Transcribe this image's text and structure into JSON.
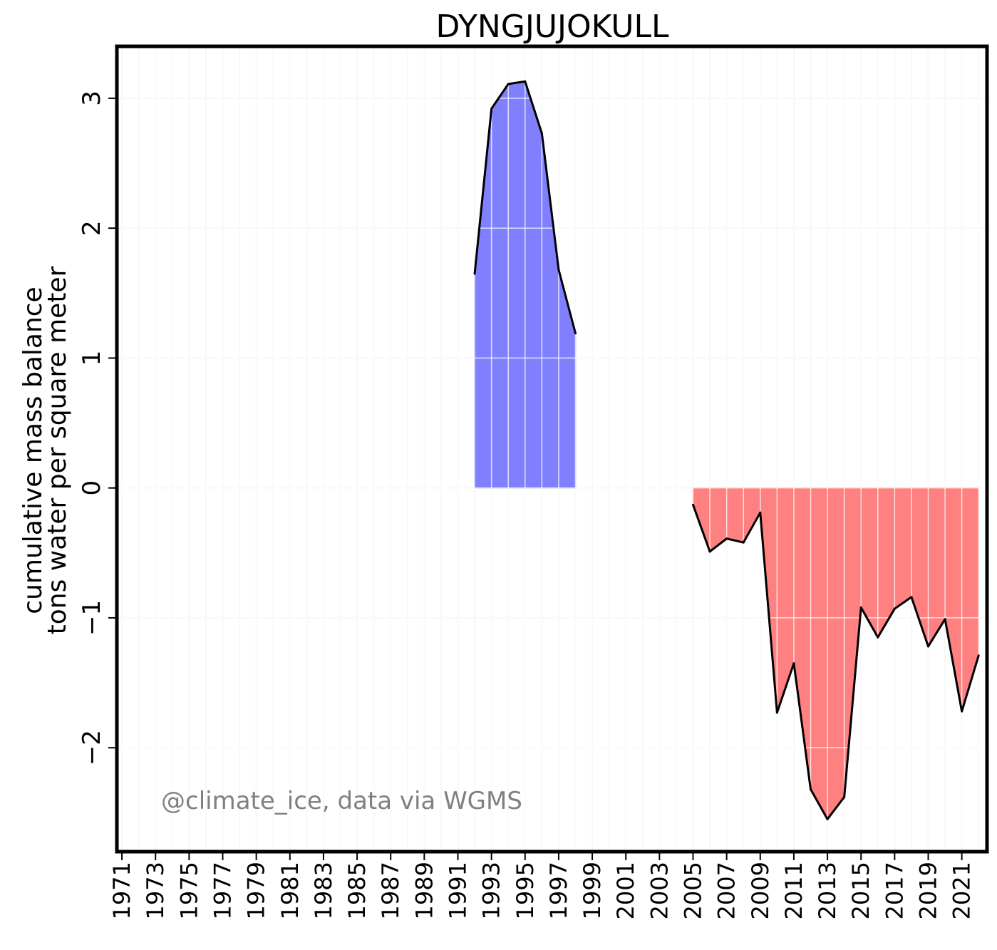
{
  "chart_data": {
    "type": "area",
    "title": "DYNGJUJOKULL",
    "ylabel_line1": "cumulative mass balance",
    "ylabel_line2": "tons water per square meter",
    "annotation": "@climate_ice, data via WGMS",
    "xlim": [
      1970.7,
      2022.5
    ],
    "ylim": [
      -2.8,
      3.4
    ],
    "yticks": [
      -2,
      -1,
      0,
      1,
      2,
      3
    ],
    "ytick_labels": [
      "−2",
      "−1",
      "0",
      "1",
      "2",
      "3"
    ],
    "xticks": [
      1971,
      1973,
      1975,
      1977,
      1979,
      1981,
      1983,
      1985,
      1987,
      1989,
      1991,
      1993,
      1995,
      1997,
      1999,
      2001,
      2003,
      2005,
      2007,
      2009,
      2011,
      2013,
      2015,
      2017,
      2019,
      2021
    ],
    "grid": true,
    "series": [
      {
        "fill_color": "#8080ff",
        "x": [
          1992,
          1993,
          1994,
          1995,
          1996,
          1997,
          1998
        ],
        "y": [
          1.65,
          2.92,
          3.11,
          3.13,
          2.73,
          1.68,
          1.19
        ]
      },
      {
        "fill_color": "#ff8080",
        "x": [
          2005,
          2006,
          2007,
          2008,
          2009,
          2010,
          2011,
          2012,
          2013,
          2014,
          2015,
          2016,
          2017,
          2018,
          2019,
          2020,
          2021,
          2022
        ],
        "y": [
          -0.13,
          -0.49,
          -0.39,
          -0.42,
          -0.19,
          -1.73,
          -1.35,
          -2.32,
          -2.55,
          -2.38,
          -0.92,
          -1.15,
          -0.93,
          -0.84,
          -1.22,
          -1.01,
          -1.72,
          -1.29
        ]
      }
    ]
  }
}
